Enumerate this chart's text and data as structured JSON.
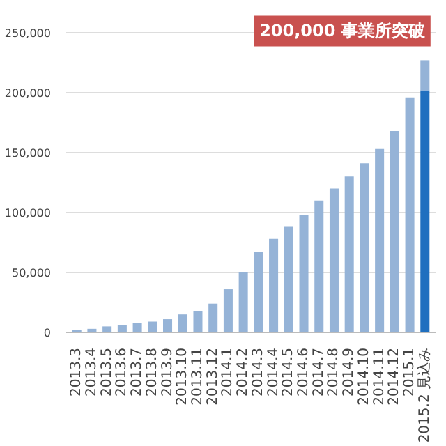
{
  "chart_data": {
    "type": "bar",
    "stacked": true,
    "categories": [
      "2013.3",
      "2013.4",
      "2013.5",
      "2013.6",
      "2013.7",
      "2013.8",
      "2013.9",
      "2013.10",
      "2013.11",
      "2013.12",
      "2014.1",
      "2014.2",
      "2014.3",
      "2014.4",
      "2014.5",
      "2014.6",
      "2014.7",
      "2014.8",
      "2014.9",
      "2014.10",
      "2014.11",
      "2014.12",
      "2015.1",
      "2015.2 見込み"
    ],
    "series": [
      {
        "color": "#1f6fbf",
        "values": [
          null,
          null,
          null,
          null,
          null,
          null,
          null,
          null,
          null,
          null,
          null,
          null,
          null,
          null,
          null,
          null,
          null,
          null,
          null,
          null,
          null,
          null,
          null,
          202000
        ]
      },
      {
        "color": "#95b3d7",
        "values": [
          2000,
          3000,
          5000,
          6000,
          8000,
          9000,
          11000,
          15000,
          18000,
          24000,
          36000,
          50000,
          67000,
          78000,
          88000,
          98000,
          110000,
          120000,
          130000,
          141000,
          153000,
          168000,
          196000,
          25000
        ]
      }
    ],
    "ylim": [
      0,
      265000
    ],
    "yticks": [
      0,
      {
        "value": 50000,
        "label": "50,000"
      },
      {
        "value": 100000,
        "label": "100,000"
      },
      {
        "value": 150000,
        "label": "150,000"
      },
      {
        "value": 200000,
        "label": "200,000"
      },
      {
        "value": 250000,
        "label": "250,000"
      }
    ],
    "grid": "y",
    "annotations": [
      {
        "text": "200,000 事業所突破",
        "x": "2015.2 見込み",
        "y": 227000
      }
    ]
  }
}
